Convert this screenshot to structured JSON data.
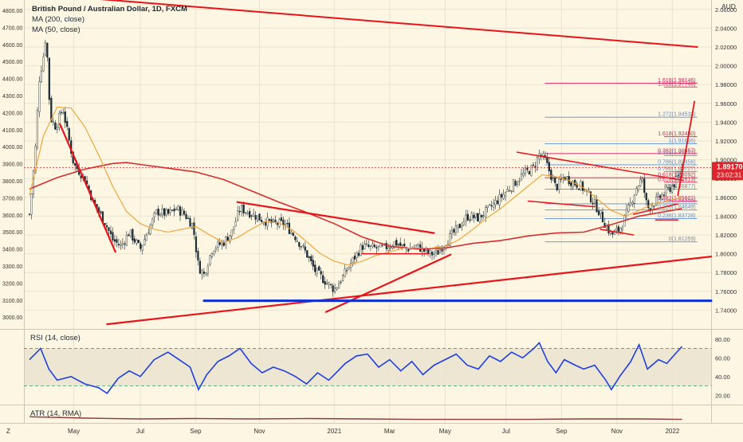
{
  "header": {
    "symbol_title": "British Pound / Australian Dollar, 1D, FXCM",
    "ma200_label": "MA (200, close)",
    "ma50_label": "MA (50, close)",
    "currency": "AUD",
    "last_price": "1.89170",
    "countdown": "23:02:31"
  },
  "colors": {
    "background": "#fdf6e3",
    "candle": "#1b2a33",
    "ma200": "#d32f2f",
    "ma50": "#f0a030",
    "trend": "#e8141c",
    "support": "#0d2fd6",
    "fib_red": "#d81b60",
    "fib_blue": "#5b8fd6",
    "rsi": "#1f3fe0",
    "atr": "#8e3b3b",
    "price_badge": "#e0242b"
  },
  "chart_data": [
    {
      "type": "candlestick",
      "title": "British Pound / Australian Dollar, 1D, FXCM",
      "ylabel": "AUD",
      "ylim": [
        1.72,
        2.07
      ],
      "yticks": [
        "2.06000",
        "2.04000",
        "2.02000",
        "2.00000",
        "1.98000",
        "1.96000",
        "1.94000",
        "1.92000",
        "1.90000",
        "1.88000",
        "1.86000",
        "1.84000",
        "1.82000",
        "1.80000",
        "1.78000",
        "1.76000",
        "1.74000"
      ],
      "left_axis_ticks": [
        "4800.00",
        "4700.00",
        "4600.00",
        "4500.00",
        "4400.00",
        "4300.00",
        "4200.00",
        "4100.00",
        "4000.00",
        "3900.00",
        "3800.00",
        "3700.00",
        "3600.00",
        "3500.00",
        "3400.00",
        "3300.00",
        "3200.00",
        "3100.00",
        "3000.00"
      ],
      "x_labels": [
        "Z",
        "May",
        "Jul",
        "Sep",
        "Nov",
        "2021",
        "Mar",
        "May",
        "Jul",
        "Sep",
        "Nov",
        "2022"
      ],
      "x_label_pos": [
        0,
        1.6,
        4,
        6,
        8.3,
        11,
        13,
        15,
        17.2,
        19.2,
        21.2,
        23.2
      ],
      "x_range": [
        -0.2,
        24.6
      ],
      "close_path": [
        [
          0,
          1.842
        ],
        [
          0.2,
          1.905
        ],
        [
          0.35,
          1.985
        ],
        [
          0.5,
          2.01
        ],
        [
          0.6,
          2.035
        ],
        [
          0.75,
          1.945
        ],
        [
          0.95,
          1.935
        ],
        [
          1.2,
          1.955
        ],
        [
          1.6,
          1.895
        ],
        [
          2.0,
          1.88
        ],
        [
          2.3,
          1.855
        ],
        [
          2.7,
          1.835
        ],
        [
          3.0,
          1.815
        ],
        [
          3.3,
          1.808
        ],
        [
          3.6,
          1.823
        ],
        [
          4.0,
          1.805
        ],
        [
          4.3,
          1.826
        ],
        [
          4.6,
          1.845
        ],
        [
          5.0,
          1.842
        ],
        [
          5.3,
          1.848
        ],
        [
          5.6,
          1.842
        ],
        [
          5.9,
          1.83
        ],
        [
          6.1,
          1.786
        ],
        [
          6.3,
          1.778
        ],
        [
          6.6,
          1.806
        ],
        [
          7.0,
          1.812
        ],
        [
          7.3,
          1.823
        ],
        [
          7.6,
          1.848
        ],
        [
          8.0,
          1.843
        ],
        [
          8.4,
          1.836
        ],
        [
          8.8,
          1.832
        ],
        [
          9.2,
          1.832
        ],
        [
          9.6,
          1.818
        ],
        [
          10.0,
          1.8
        ],
        [
          10.3,
          1.782
        ],
        [
          10.7,
          1.77
        ],
        [
          11.0,
          1.762
        ],
        [
          11.3,
          1.775
        ],
        [
          11.6,
          1.79
        ],
        [
          12.0,
          1.808
        ],
        [
          12.4,
          1.806
        ],
        [
          12.8,
          1.806
        ],
        [
          13.2,
          1.812
        ],
        [
          13.6,
          1.805
        ],
        [
          14.0,
          1.808
        ],
        [
          14.4,
          1.8
        ],
        [
          14.7,
          1.8
        ],
        [
          15.0,
          1.812
        ],
        [
          15.4,
          1.825
        ],
        [
          15.8,
          1.84
        ],
        [
          16.2,
          1.838
        ],
        [
          16.6,
          1.848
        ],
        [
          17.0,
          1.86
        ],
        [
          17.4,
          1.872
        ],
        [
          17.8,
          1.884
        ],
        [
          18.2,
          1.892
        ],
        [
          18.4,
          1.906
        ],
        [
          18.6,
          1.9
        ],
        [
          18.8,
          1.885
        ],
        [
          19.0,
          1.87
        ],
        [
          19.3,
          1.882
        ],
        [
          19.6,
          1.876
        ],
        [
          19.9,
          1.872
        ],
        [
          20.2,
          1.862
        ],
        [
          20.5,
          1.848
        ],
        [
          20.8,
          1.83
        ],
        [
          21.0,
          1.82
        ],
        [
          21.3,
          1.826
        ],
        [
          21.6,
          1.846
        ],
        [
          21.9,
          1.87
        ],
        [
          22.1,
          1.88
        ],
        [
          22.3,
          1.848
        ],
        [
          22.6,
          1.856
        ],
        [
          22.9,
          1.864
        ],
        [
          23.2,
          1.872
        ],
        [
          23.4,
          1.88
        ],
        [
          23.55,
          1.892
        ]
      ],
      "ma200_path": [
        [
          0,
          1.869
        ],
        [
          1,
          1.881
        ],
        [
          2,
          1.89
        ],
        [
          3,
          1.896
        ],
        [
          3.5,
          1.897
        ],
        [
          4,
          1.895
        ],
        [
          5,
          1.891
        ],
        [
          6,
          1.887
        ],
        [
          7,
          1.879
        ],
        [
          8,
          1.867
        ],
        [
          9,
          1.855
        ],
        [
          10,
          1.844
        ],
        [
          11,
          1.832
        ],
        [
          12,
          1.818
        ],
        [
          13,
          1.808
        ],
        [
          14,
          1.805
        ],
        [
          15,
          1.806
        ],
        [
          16,
          1.811
        ],
        [
          17,
          1.814
        ],
        [
          18,
          1.819
        ],
        [
          19,
          1.822
        ],
        [
          20,
          1.823
        ],
        [
          21,
          1.831
        ],
        [
          22,
          1.84
        ],
        [
          23.55,
          1.848
        ]
      ],
      "ma50_path": [
        [
          0,
          1.862
        ],
        [
          0.5,
          1.925
        ],
        [
          1,
          1.956
        ],
        [
          1.5,
          1.955
        ],
        [
          2,
          1.935
        ],
        [
          2.5,
          1.905
        ],
        [
          3,
          1.872
        ],
        [
          3.5,
          1.845
        ],
        [
          4,
          1.832
        ],
        [
          4.5,
          1.826
        ],
        [
          5,
          1.823
        ],
        [
          5.5,
          1.826
        ],
        [
          6,
          1.829
        ],
        [
          6.5,
          1.82
        ],
        [
          7,
          1.812
        ],
        [
          7.5,
          1.817
        ],
        [
          8,
          1.826
        ],
        [
          8.5,
          1.834
        ],
        [
          9,
          1.833
        ],
        [
          9.5,
          1.825
        ],
        [
          10,
          1.813
        ],
        [
          10.5,
          1.8
        ],
        [
          11,
          1.792
        ],
        [
          11.5,
          1.788
        ],
        [
          12,
          1.792
        ],
        [
          12.5,
          1.798
        ],
        [
          13,
          1.802
        ],
        [
          13.5,
          1.806
        ],
        [
          14,
          1.806
        ],
        [
          14.5,
          1.806
        ],
        [
          15,
          1.808
        ],
        [
          15.5,
          1.815
        ],
        [
          16,
          1.826
        ],
        [
          16.5,
          1.838
        ],
        [
          17,
          1.848
        ],
        [
          17.5,
          1.86
        ],
        [
          18,
          1.872
        ],
        [
          18.5,
          1.884
        ],
        [
          19,
          1.882
        ],
        [
          19.5,
          1.878
        ],
        [
          20,
          1.87
        ],
        [
          20.5,
          1.858
        ],
        [
          21,
          1.846
        ],
        [
          21.5,
          1.84
        ],
        [
          22,
          1.846
        ],
        [
          22.5,
          1.853
        ],
        [
          23,
          1.856
        ],
        [
          23.55,
          1.86
        ]
      ],
      "trendlines": [
        {
          "from": [
            0.8,
            2.075
          ],
          "to": [
            24.1,
            2.02
          ],
          "color": "trend",
          "width": 2
        },
        {
          "from": [
            1.1,
            1.938
          ],
          "to": [
            3.1,
            1.802
          ],
          "color": "trend",
          "width": 2.2
        },
        {
          "from": [
            7.5,
            1.855
          ],
          "to": [
            14.6,
            1.822
          ],
          "color": "trend",
          "width": 2.2
        },
        {
          "from": [
            10.7,
            1.738
          ],
          "to": [
            15.2,
            1.799
          ],
          "color": "trend",
          "width": 2.2
        },
        {
          "from": [
            2.8,
            1.725
          ],
          "to": [
            24.6,
            1.797
          ],
          "color": "trend",
          "width": 2.2
        },
        {
          "from": [
            12.0,
            1.8
          ],
          "to": [
            14.4,
            1.8
          ],
          "color": "trend",
          "width": 1.5
        },
        {
          "from": [
            17.6,
            1.908
          ],
          "to": [
            23.6,
            1.878
          ],
          "color": "trend",
          "width": 1.5
        },
        {
          "from": [
            18.0,
            1.856
          ],
          "to": [
            20.4,
            1.85
          ],
          "color": "trend",
          "width": 1.5
        },
        {
          "from": [
            20.6,
            1.826
          ],
          "to": [
            21.8,
            1.82
          ],
          "color": "trend",
          "width": 1.5
        },
        {
          "from": [
            21.8,
            1.842
          ],
          "to": [
            23.4,
            1.853
          ],
          "color": "trend",
          "width": 1.5
        },
        {
          "from": [
            22.6,
            1.836
          ],
          "to": [
            23.4,
            1.836
          ],
          "color": "trend",
          "width": 1.5
        },
        {
          "from": [
            23.4,
            1.862
          ],
          "to": [
            24.0,
            1.962
          ],
          "color": "trend",
          "width": 1.8
        },
        {
          "from": [
            6.3,
            1.75
          ],
          "to": [
            24.6,
            1.75
          ],
          "color": "support",
          "width": 3
        }
      ],
      "fib_levels": [
        {
          "label": "1.618(1.98146)",
          "value": 1.9815,
          "color": "fib_red",
          "x_start": 18.6
        },
        {
          "label": "1.618(1.97748)",
          "value": 1.9775,
          "color": "fib_red",
          "x_start": 22.9
        },
        {
          "label": "1.272(1.94533)",
          "value": 1.9453,
          "color": "fib_blue",
          "x_start": 18.6
        },
        {
          "label": "1.618(1.92450)",
          "value": 1.9245,
          "color": "fib_red",
          "x_start": 22.9
        },
        {
          "label": "1(1.91695)",
          "value": 1.917,
          "color": "fib_blue",
          "x_start": 18.6
        },
        {
          "label": "0.382(1.90657)",
          "value": 1.9066,
          "color": "fib_red",
          "x_start": 18.6
        },
        {
          "label": "0.382(1.90453)",
          "value": 1.9045,
          "color": "fib_blue",
          "x_start": 22.9
        },
        {
          "label": "0.786(1.89456)",
          "value": 1.8946,
          "color": "fib_blue",
          "x_start": 18.6
        },
        {
          "label": "0.786(1.88727)",
          "value": 1.8873,
          "color": "fib_blue",
          "x_start": 22.9
        },
        {
          "label": "0.618(1.88092)",
          "value": 1.8809,
          "color": "fib_red",
          "x_start": 18.6
        },
        {
          "label": "0.618(1.87613)",
          "value": 1.8761,
          "color": "fib_red",
          "x_start": 22.9
        },
        {
          "label": "0.5(1.86877)",
          "value": 1.8688,
          "color": "fib_blue",
          "x_start": 18.6
        },
        {
          "label": "0.382(1.85602)",
          "value": 1.856,
          "color": "fib_red",
          "x_start": 22.9
        },
        {
          "label": "0.382(1.85309)",
          "value": 1.8531,
          "color": "fib_blue",
          "x_start": 18.6
        },
        {
          "label": "0.236(1.84649)",
          "value": 1.8465,
          "color": "fib_blue",
          "x_start": 18.6
        },
        {
          "label": "0.236(1.83728)",
          "value": 1.8373,
          "color": "fib_blue",
          "x_start": 18.6
        },
        {
          "label": "0(1.81259)",
          "value": 1.8126,
          "color": "fib_blue",
          "x_start": 18.6
        }
      ]
    },
    {
      "type": "line",
      "title": "RSI (14, close)",
      "ylim": [
        10,
        90
      ],
      "yticks": [
        "80.00",
        "60.00",
        "40.00",
        "20.00"
      ],
      "upper_band": 70,
      "lower_band": 30,
      "path": [
        [
          0,
          58
        ],
        [
          0.4,
          70
        ],
        [
          0.7,
          48
        ],
        [
          1.0,
          36
        ],
        [
          1.5,
          40
        ],
        [
          2.0,
          32
        ],
        [
          2.5,
          28
        ],
        [
          2.8,
          22
        ],
        [
          3.2,
          38
        ],
        [
          3.6,
          46
        ],
        [
          4.0,
          40
        ],
        [
          4.5,
          58
        ],
        [
          5.0,
          66
        ],
        [
          5.4,
          58
        ],
        [
          5.8,
          50
        ],
        [
          6.1,
          26
        ],
        [
          6.4,
          42
        ],
        [
          6.8,
          56
        ],
        [
          7.2,
          62
        ],
        [
          7.6,
          70
        ],
        [
          8.0,
          54
        ],
        [
          8.4,
          44
        ],
        [
          8.8,
          50
        ],
        [
          9.2,
          46
        ],
        [
          9.6,
          40
        ],
        [
          10.0,
          32
        ],
        [
          10.4,
          44
        ],
        [
          10.8,
          36
        ],
        [
          11.0,
          42
        ],
        [
          11.4,
          54
        ],
        [
          11.8,
          62
        ],
        [
          12.2,
          64
        ],
        [
          12.6,
          50
        ],
        [
          13.0,
          58
        ],
        [
          13.4,
          46
        ],
        [
          13.8,
          56
        ],
        [
          14.2,
          42
        ],
        [
          14.6,
          52
        ],
        [
          15.0,
          58
        ],
        [
          15.4,
          64
        ],
        [
          15.8,
          52
        ],
        [
          16.2,
          48
        ],
        [
          16.6,
          62
        ],
        [
          17.0,
          56
        ],
        [
          17.4,
          66
        ],
        [
          17.8,
          60
        ],
        [
          18.2,
          70
        ],
        [
          18.4,
          76
        ],
        [
          18.7,
          56
        ],
        [
          19.0,
          44
        ],
        [
          19.3,
          58
        ],
        [
          19.7,
          52
        ],
        [
          20.0,
          48
        ],
        [
          20.4,
          52
        ],
        [
          20.8,
          36
        ],
        [
          21.0,
          26
        ],
        [
          21.3,
          40
        ],
        [
          21.7,
          56
        ],
        [
          22.0,
          74
        ],
        [
          22.3,
          48
        ],
        [
          22.7,
          58
        ],
        [
          23.0,
          54
        ],
        [
          23.3,
          64
        ],
        [
          23.55,
          72
        ]
      ]
    },
    {
      "type": "area",
      "title": "ATR (14, RMA)",
      "ylim": [
        0,
        0.04
      ],
      "path": [
        [
          0,
          0.014
        ],
        [
          2,
          0.011
        ],
        [
          4,
          0.009
        ],
        [
          6,
          0.01
        ],
        [
          8,
          0.009
        ],
        [
          10,
          0.01
        ],
        [
          12,
          0.009
        ],
        [
          14,
          0.008
        ],
        [
          16,
          0.008
        ],
        [
          18,
          0.008
        ],
        [
          20,
          0.009
        ],
        [
          22,
          0.009
        ],
        [
          23.55,
          0.008
        ]
      ]
    }
  ]
}
